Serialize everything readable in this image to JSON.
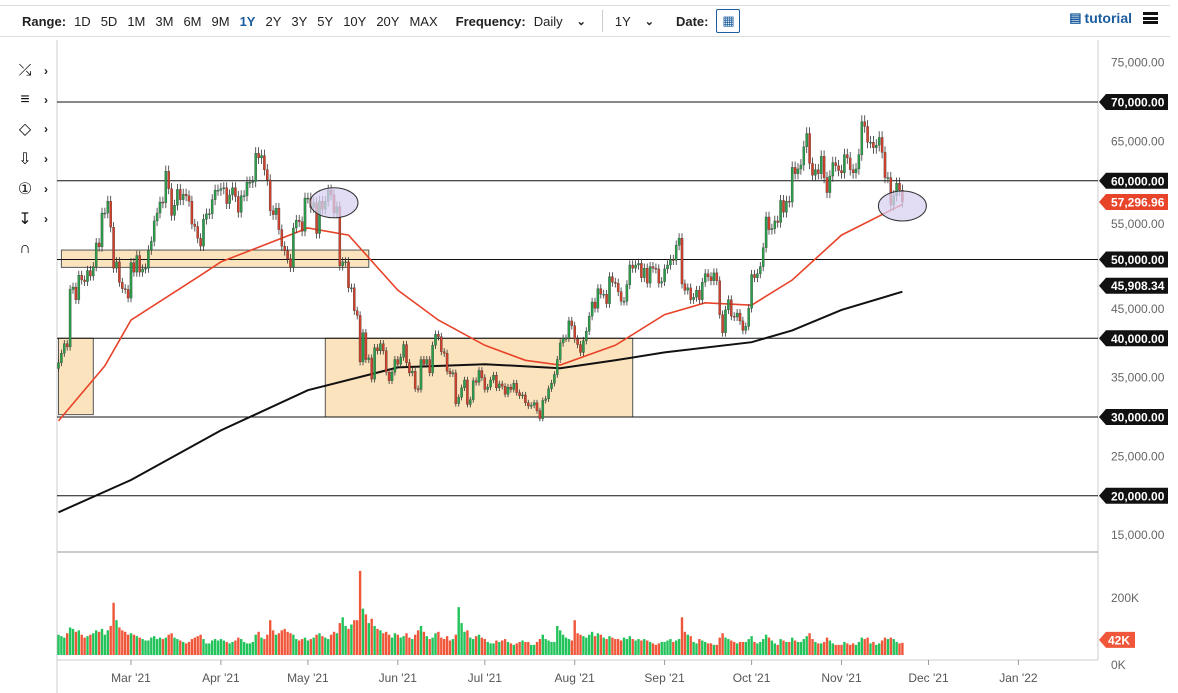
{
  "toolbar": {
    "range_label": "Range:",
    "ranges": [
      "1D",
      "5D",
      "1M",
      "3M",
      "6M",
      "9M",
      "1Y",
      "2Y",
      "3Y",
      "5Y",
      "10Y",
      "20Y",
      "MAX"
    ],
    "active_range": "1Y",
    "frequency_label": "Frequency:",
    "frequency": "Daily",
    "period": "1Y",
    "date_label": "Date:",
    "tutorial": "tutorial"
  },
  "tools": [
    "trendline-icon",
    "fibonacci-icon",
    "shapes-icon",
    "arrow-down-icon",
    "counter-icon",
    "measure-icon",
    "magnet-icon"
  ],
  "colors": {
    "up": "#2a9d4a",
    "down": "#d0402a",
    "vol_up": "#22c35a",
    "vol_down": "#f0573a",
    "ma_fast": "#e8442a",
    "ma_slow": "#111111",
    "zone_fill": "#fbe3bd",
    "ellipse_fill": "#d8d0f2",
    "accent": "#1a5c9e"
  },
  "chart_data": {
    "type": "candlestick",
    "y_ticks": [
      "75,000.00",
      "70,000.00",
      "65,000.00",
      "60,000.00",
      "55,000.00",
      "50,000.00",
      "45,000.00",
      "40,000.00",
      "35,000.00",
      "30,000.00",
      "25,000.00",
      "20,000.00",
      "15,000.00"
    ],
    "y_tick_values": [
      75000,
      70000,
      65000,
      60000,
      55000,
      50000,
      45000,
      40000,
      35000,
      30000,
      25000,
      20000,
      15000
    ],
    "x_ticks": [
      {
        "label": "Mar '21",
        "date": "2021-03-01"
      },
      {
        "label": "Apr '21",
        "date": "2021-04-01"
      },
      {
        "label": "May '21",
        "date": "2021-05-01"
      },
      {
        "label": "Jun '21",
        "date": "2021-06-01"
      },
      {
        "label": "Jul '21",
        "date": "2021-07-01"
      },
      {
        "label": "Aug '21",
        "date": "2021-08-01"
      },
      {
        "label": "Sep '21",
        "date": "2021-09-01"
      },
      {
        "label": "Oct '21",
        "date": "2021-10-01"
      },
      {
        "label": "Nov '21",
        "date": "2021-11-01"
      },
      {
        "label": "Dec '21",
        "date": "2021-12-01"
      },
      {
        "label": "Jan '22",
        "date": "2022-01-01"
      }
    ],
    "volume_ticks": [
      {
        "label": "200K",
        "value": 200
      },
      {
        "label": "0K",
        "value": 0
      }
    ],
    "levels": [
      {
        "value": 70000,
        "label": "70,000.00"
      },
      {
        "value": 60000,
        "label": "60,000.00"
      },
      {
        "value": 50000,
        "label": "50,000.00"
      },
      {
        "value": 40000,
        "label": "40,000.00"
      },
      {
        "value": 30000,
        "label": "30,000.00"
      },
      {
        "value": 20000,
        "label": "20,000.00"
      }
    ],
    "last_price": {
      "value": 57296.96,
      "label": "57,296.96"
    },
    "ma_slow_last": {
      "value": 45908.34,
      "label": "45,908.34"
    },
    "last_volume": {
      "value": 42,
      "label": "42K"
    },
    "zones": [
      {
        "from": "2021-02-04",
        "to": "2021-02-16",
        "low": 30300,
        "high": 40000
      },
      {
        "from": "2021-02-05",
        "to": "2021-05-22",
        "low": 49000,
        "high": 51200
      },
      {
        "from": "2021-05-07",
        "to": "2021-08-21",
        "low": 30000,
        "high": 40000
      }
    ],
    "ellipses": [
      {
        "date": "2021-05-10",
        "price": 57200
      },
      {
        "date": "2021-11-22",
        "price": 56800
      }
    ],
    "ma_fast": [
      [
        "2021-02-04",
        29500
      ],
      [
        "2021-02-20",
        36500
      ],
      [
        "2021-03-01",
        42300
      ],
      [
        "2021-03-25",
        48000
      ],
      [
        "2021-04-01",
        49700
      ],
      [
        "2021-05-01",
        54000
      ],
      [
        "2021-05-15",
        53100
      ],
      [
        "2021-06-01",
        46100
      ],
      [
        "2021-06-15",
        42300
      ],
      [
        "2021-07-01",
        39100
      ],
      [
        "2021-07-15",
        37200
      ],
      [
        "2021-07-27",
        36600
      ],
      [
        "2021-08-15",
        39100
      ],
      [
        "2021-09-01",
        43000
      ],
      [
        "2021-09-15",
        44500
      ],
      [
        "2021-10-01",
        44200
      ],
      [
        "2021-10-15",
        47400
      ],
      [
        "2021-11-01",
        53100
      ],
      [
        "2021-11-22",
        57000
      ]
    ],
    "ma_slow": [
      [
        "2021-02-04",
        17900
      ],
      [
        "2021-03-01",
        22000
      ],
      [
        "2021-04-01",
        28300
      ],
      [
        "2021-05-01",
        33400
      ],
      [
        "2021-06-01",
        36300
      ],
      [
        "2021-07-01",
        36700
      ],
      [
        "2021-07-27",
        36200
      ],
      [
        "2021-08-15",
        37200
      ],
      [
        "2021-09-01",
        38200
      ],
      [
        "2021-10-01",
        39500
      ],
      [
        "2021-10-15",
        41000
      ],
      [
        "2021-11-01",
        43600
      ],
      [
        "2021-11-22",
        45908
      ]
    ],
    "months": [
      {
        "month": "2021-02",
        "first_day": 4,
        "close": [
          36900,
          38100,
          39300,
          38900,
          46200,
          46500,
          44900,
          48000,
          47400,
          47200,
          48600,
          47900,
          49100,
          52100,
          51600,
          55900,
          55900,
          57400,
          54100,
          48900,
          49700,
          47100,
          46300,
          46200,
          45100
        ],
        "volume_k": [
          70,
          65,
          60,
          75,
          95,
          90,
          80,
          85,
          70,
          60,
          65,
          70,
          75,
          85,
          80,
          90,
          70,
          85,
          100,
          180,
          120,
          95,
          85,
          80,
          70
        ]
      },
      {
        "month": "2021-03",
        "first_day": 1,
        "close": [
          49600,
          48400,
          50500,
          48400,
          48800,
          48900,
          51200,
          52300,
          54900,
          55900,
          57300,
          57200,
          61200,
          59000,
          55600,
          56900,
          58900,
          57600,
          58300,
          58100,
          57400,
          54500,
          54200,
          52700,
          51700,
          55100,
          55800,
          55800,
          57600,
          58800,
          58800
        ],
        "volume_k": [
          75,
          70,
          65,
          60,
          55,
          50,
          50,
          60,
          65,
          55,
          60,
          55,
          60,
          70,
          75,
          60,
          55,
          50,
          45,
          40,
          45,
          55,
          60,
          65,
          70,
          55,
          40,
          40,
          50,
          55,
          50
        ]
      },
      {
        "month": "2021-04",
        "first_day": 1,
        "close": [
          59000,
          59100,
          57100,
          58200,
          59100,
          58000,
          56000,
          58100,
          58100,
          59800,
          59800,
          59900,
          63500,
          62900,
          63200,
          61400,
          60100,
          56200,
          55700,
          56500,
          53800,
          51700,
          51100,
          50100,
          49000,
          54000,
          55000,
          54800,
          53600,
          57800
        ],
        "volume_k": [
          55,
          50,
          45,
          40,
          45,
          50,
          60,
          55,
          45,
          40,
          40,
          45,
          70,
          80,
          60,
          55,
          70,
          120,
          85,
          70,
          75,
          85,
          90,
          80,
          75,
          70,
          55,
          50,
          55,
          60
        ]
      },
      {
        "month": "2021-05",
        "first_day": 1,
        "close": [
          57800,
          56600,
          57200,
          53300,
          57400,
          56400,
          57400,
          58800,
          58200,
          55900,
          56700,
          49200,
          49700,
          49700,
          46400,
          46400,
          43500,
          42900,
          37000,
          40700,
          37300,
          37500,
          34800,
          38800,
          38400,
          39300,
          38400,
          35700,
          34600,
          35700,
          37300
        ],
        "volume_k": [
          50,
          55,
          60,
          70,
          75,
          65,
          60,
          55,
          70,
          80,
          75,
          110,
          130,
          100,
          90,
          105,
          120,
          120,
          290,
          160,
          140,
          110,
          125,
          100,
          90,
          85,
          75,
          80,
          70,
          60,
          75
        ]
      },
      {
        "month": "2021-06",
        "first_day": 1,
        "close": [
          36700,
          37600,
          39200,
          36900,
          35600,
          35800,
          33600,
          33500,
          37300,
          36700,
          37300,
          35600,
          39100,
          40500,
          40200,
          38300,
          38100,
          35800,
          35500,
          35600,
          31700,
          32500,
          33700,
          34700,
          31600,
          32200,
          34600,
          34400,
          35900,
          35000
        ],
        "volume_k": [
          70,
          60,
          65,
          75,
          60,
          55,
          70,
          85,
          100,
          80,
          65,
          55,
          60,
          75,
          80,
          60,
          55,
          65,
          50,
          55,
          70,
          165,
          110,
          80,
          85,
          60,
          55,
          65,
          70,
          60
        ]
      },
      {
        "month": "2021-07",
        "first_day": 1,
        "close": [
          33500,
          33800,
          34700,
          35300,
          33700,
          34200,
          33900,
          32900,
          33800,
          33500,
          34300,
          33100,
          32700,
          32800,
          31800,
          31400,
          31500,
          31800,
          30800,
          29800,
          32100,
          32300,
          33600,
          34300,
          35400,
          37300,
          39400,
          40000,
          40000,
          42200,
          41600
        ],
        "volume_k": [
          55,
          45,
          40,
          40,
          50,
          45,
          50,
          55,
          45,
          40,
          35,
          40,
          45,
          50,
          45,
          45,
          35,
          35,
          45,
          55,
          70,
          55,
          50,
          45,
          45,
          100,
          85,
          70,
          60,
          55,
          50
        ]
      },
      {
        "month": "2021-08",
        "first_day": 1,
        "close": [
          39900,
          39200,
          38200,
          39700,
          40900,
          42800,
          44600,
          43800,
          46300,
          45600,
          45600,
          44400,
          47800,
          47100,
          47000,
          45900,
          44700,
          44700,
          46800,
          49300,
          48900,
          49300,
          49500,
          47700,
          48900,
          47000,
          49100,
          48900,
          48800,
          47000,
          47200
        ],
        "volume_k": [
          120,
          75,
          70,
          65,
          60,
          70,
          80,
          65,
          75,
          70,
          60,
          55,
          65,
          60,
          55,
          55,
          50,
          60,
          55,
          65,
          55,
          50,
          55,
          50,
          55,
          50,
          45,
          40,
          35,
          40,
          45
        ]
      },
      {
        "month": "2021-09",
        "first_day": 1,
        "close": [
          48800,
          49300,
          50000,
          49900,
          51800,
          52700,
          46900,
          46100,
          46400,
          44900,
          45200,
          46100,
          44900,
          47100,
          48200,
          47800,
          47300,
          48300,
          47300,
          43000,
          40700,
          43600,
          44900,
          42800,
          42700,
          43200,
          42200,
          41000,
          41500,
          43800
        ],
        "volume_k": [
          45,
          50,
          55,
          45,
          50,
          55,
          130,
          80,
          70,
          65,
          45,
          40,
          55,
          50,
          45,
          40,
          40,
          35,
          35,
          60,
          75,
          60,
          55,
          50,
          45,
          40,
          45,
          45,
          45,
          55
        ]
      },
      {
        "month": "2021-10",
        "first_day": 1,
        "close": [
          48100,
          47700,
          48200,
          49100,
          51500,
          55400,
          53800,
          53900,
          54900,
          54700,
          57500,
          56000,
          57400,
          57300,
          61700,
          60900,
          61500,
          62000,
          64300,
          66000,
          62200,
          60700,
          61400,
          60900,
          63100,
          60400,
          58500,
          60600,
          62300,
          61900,
          61300
        ],
        "volume_k": [
          65,
          45,
          40,
          45,
          55,
          70,
          60,
          50,
          40,
          35,
          55,
          50,
          45,
          45,
          60,
          50,
          45,
          45,
          55,
          65,
          75,
          55,
          45,
          40,
          40,
          45,
          60,
          50,
          40,
          35,
          35
        ]
      },
      {
        "month": "2021-11",
        "first_day": 1,
        "close": [
          61000,
          63300,
          62900,
          61400,
          61000,
          61500,
          63300,
          67500,
          66900,
          64900,
          64900,
          64200,
          64500,
          65500,
          63600,
          60400,
          60400,
          56900,
          58100,
          59700,
          58800,
          57297
        ],
        "volume_k": [
          35,
          45,
          40,
          35,
          40,
          35,
          45,
          60,
          55,
          60,
          40,
          45,
          35,
          40,
          50,
          60,
          55,
          60,
          55,
          45,
          40,
          42
        ]
      }
    ]
  }
}
